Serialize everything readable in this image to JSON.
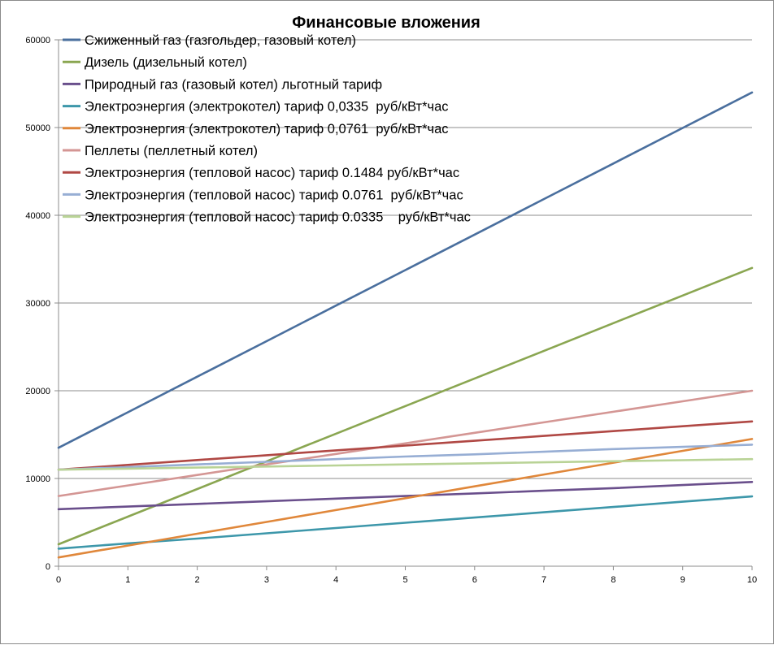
{
  "chart_data": {
    "type": "line",
    "title": "Финансовые вложения",
    "xlabel": "",
    "ylabel": "",
    "x": [
      0,
      1,
      2,
      3,
      4,
      5,
      6,
      7,
      8,
      9,
      10
    ],
    "xlim": [
      0,
      10
    ],
    "ylim": [
      0,
      60000
    ],
    "yticks": [
      0,
      10000,
      20000,
      30000,
      40000,
      50000,
      60000
    ],
    "xticks": [
      0,
      1,
      2,
      3,
      4,
      5,
      6,
      7,
      8,
      9,
      10
    ],
    "grid": "horizontal",
    "legend_position": "top-left",
    "series": [
      {
        "name": "Сжиженный газ (газгольдер, газовый котел)",
        "color": "#4a6f9e",
        "values": [
          13500,
          17550,
          21600,
          25650,
          29700,
          33750,
          37800,
          41850,
          45900,
          49950,
          54000
        ]
      },
      {
        "name": "Дизель (дизельный котел)",
        "color": "#8aa651",
        "values": [
          2500,
          5650,
          8800,
          11950,
          15100,
          18250,
          21400,
          24550,
          27700,
          30850,
          34000
        ]
      },
      {
        "name": "Природный газ (газовый котел) льготный тариф",
        "color": "#6a4f8c",
        "values": [
          6500,
          6800,
          7100,
          7400,
          7700,
          8000,
          8300,
          8600,
          8900,
          9250,
          9600
        ]
      },
      {
        "name": "Электроэнергия (электрокотел) тариф 0,0335  руб/кВт*час",
        "color": "#3d97aa",
        "values": [
          2000,
          2600,
          3150,
          3750,
          4350,
          4950,
          5550,
          6150,
          6750,
          7350,
          7950
        ]
      },
      {
        "name": "Электроэнергия (электрокотел) тариф 0,0761  руб/кВт*час",
        "color": "#e0873a",
        "values": [
          1000,
          2350,
          3700,
          5050,
          6400,
          7750,
          9100,
          10450,
          11800,
          13150,
          14500
        ]
      },
      {
        "name": "Пеллеты (пеллетный котел)",
        "color": "#d49694",
        "values": [
          8000,
          9200,
          10400,
          11600,
          12800,
          14000,
          15200,
          16400,
          17600,
          18800,
          20000
        ]
      },
      {
        "name": "Электроэнергия (тепловой насос) тариф 0.1484 руб/кВт*час",
        "color": "#b04844",
        "values": [
          11000,
          11550,
          12100,
          12650,
          13200,
          13750,
          14300,
          14850,
          15400,
          15950,
          16500
        ]
      },
      {
        "name": "Электроэнергия (тепловой насос) тариф 0.0761  руб/кВт*час",
        "color": "#97aed4",
        "values": [
          11000,
          11300,
          11600,
          11900,
          12200,
          12500,
          12750,
          13050,
          13350,
          13600,
          13850
        ]
      },
      {
        "name": "Электроэнергия (тепловой насос) тариф 0.0335    руб/кВт*час",
        "color": "#b9d396",
        "values": [
          11000,
          11120,
          11240,
          11360,
          11480,
          11600,
          11720,
          11840,
          11960,
          12080,
          12200
        ]
      }
    ]
  }
}
